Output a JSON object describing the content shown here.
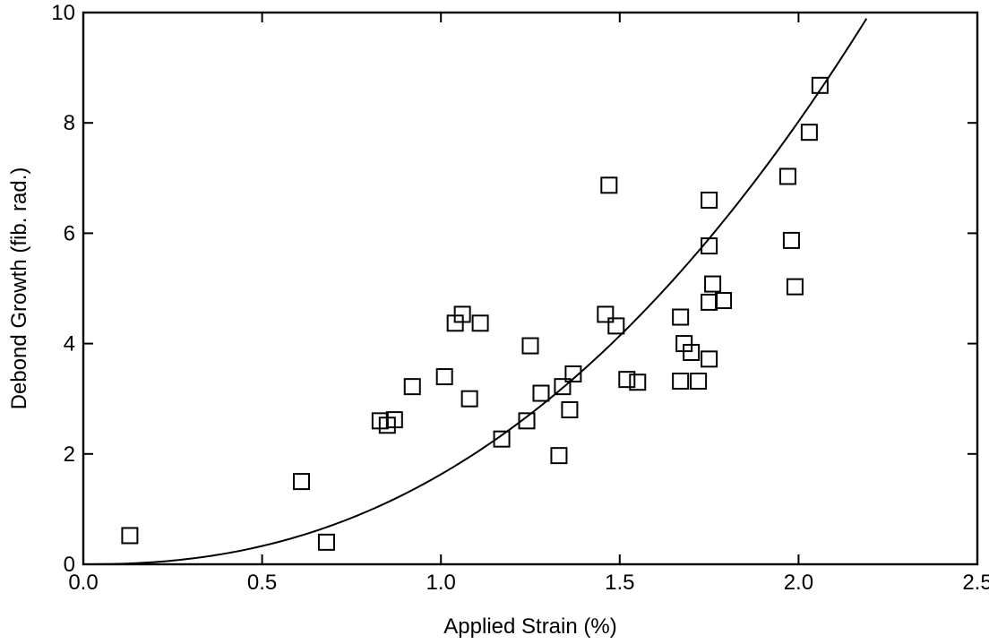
{
  "chart_data": {
    "type": "scatter",
    "title": "",
    "xlabel": "Applied Strain (%)",
    "ylabel": "Debond Growth (fib. rad.)",
    "xlim": [
      0.0,
      2.5
    ],
    "ylim": [
      0,
      10
    ],
    "x_ticks": [
      "0.0",
      "0.5",
      "1.0",
      "1.5",
      "2.0",
      "2.5"
    ],
    "y_ticks": [
      "0",
      "2",
      "4",
      "6",
      "8",
      "10"
    ],
    "grid": false,
    "legend": "none",
    "marker": "open-square",
    "series": [
      {
        "points": [
          [
            0.13,
            0.52
          ],
          [
            0.61,
            1.5
          ],
          [
            0.68,
            0.4
          ],
          [
            0.83,
            2.6
          ],
          [
            0.85,
            2.52
          ],
          [
            0.87,
            2.62
          ],
          [
            0.92,
            3.22
          ],
          [
            1.01,
            3.4
          ],
          [
            1.04,
            4.37
          ],
          [
            1.06,
            4.53
          ],
          [
            1.08,
            3.0
          ],
          [
            1.11,
            4.37
          ],
          [
            1.17,
            2.27
          ],
          [
            1.24,
            2.6
          ],
          [
            1.25,
            3.96
          ],
          [
            1.28,
            3.1
          ],
          [
            1.33,
            1.97
          ],
          [
            1.34,
            3.22
          ],
          [
            1.36,
            2.8
          ],
          [
            1.37,
            3.45
          ],
          [
            1.46,
            4.53
          ],
          [
            1.47,
            6.87
          ],
          [
            1.49,
            4.32
          ],
          [
            1.52,
            3.35
          ],
          [
            1.55,
            3.3
          ],
          [
            1.67,
            3.32
          ],
          [
            1.67,
            4.48
          ],
          [
            1.68,
            4.0
          ],
          [
            1.7,
            3.84
          ],
          [
            1.72,
            3.32
          ],
          [
            1.75,
            3.72
          ],
          [
            1.75,
            4.75
          ],
          [
            1.75,
            5.77
          ],
          [
            1.75,
            6.6
          ],
          [
            1.76,
            5.08
          ],
          [
            1.79,
            4.78
          ],
          [
            1.97,
            7.03
          ],
          [
            1.98,
            5.87
          ],
          [
            1.99,
            5.03
          ],
          [
            2.03,
            7.83
          ],
          [
            2.06,
            8.68
          ]
        ]
      }
    ],
    "fit_curve": {
      "type": "power",
      "a": 1.63,
      "b": 2.3,
      "x_range": [
        0.0,
        2.19
      ]
    }
  }
}
